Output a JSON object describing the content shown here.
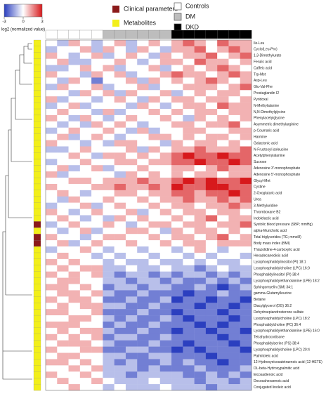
{
  "chart_data": {
    "type": "heatmap",
    "colorbar_label": "log2 (normalized value)",
    "zlim": [
      -3,
      3
    ],
    "zticks": [
      -3,
      0,
      3
    ],
    "colorscale": {
      "low": "#2b3fbf",
      "mid": "#ffffff",
      "high": "#d7191c"
    },
    "row_type_names": [
      "Clinical parameters",
      "Metabolites"
    ],
    "row_type_colors": [
      "#8b1a1a",
      "#f2ef1a"
    ],
    "column_group_names": [
      "Controls",
      "DM",
      "DKD"
    ],
    "column_group_colors": [
      "#ffffff",
      "#bdbdbd",
      "#000000"
    ],
    "column_groups": [
      0,
      0,
      0,
      0,
      0,
      1,
      1,
      1,
      1,
      1,
      1,
      2,
      2,
      2,
      2,
      2,
      2,
      2
    ],
    "rows": [
      "Ile-Leu",
      "Cyclo(Leu-Pro)",
      "1,3-Dimethylurate",
      "Ferulic acid",
      "Caffeic acid",
      "Trp-Met",
      "Asp-Leu",
      "Glu-Val-Phe",
      "Prostaglandin I2",
      "Pyridoxal",
      "N-Methylalanine",
      "N,N-Dimethylglycine",
      "Phenylacetylglycine",
      "Asymmetric dimethylarginine",
      "p-Coumaric acid",
      "Harmine",
      "Galactonic acid",
      "N-Fructosyl isoleucine",
      "Acetylphenylalanine",
      "Sucrose",
      "Adenosine 3'-monophosphate",
      "Adenosine 5'-monophosphate",
      "Glycyl-Met",
      "Cystine",
      "2-Oxoglutaric acid",
      "Urea",
      "3-Methyluridine",
      "Thromboxane B2",
      "Indolelactic acid",
      "Systolic blood pressure (SBP; mmHg)",
      "alpha-Muricholic acid",
      "Total triglycerides (TG; mmol/l)",
      "Body mass index (BMI)",
      "Thiazolidine-4-carboxylic acid",
      "Hexadecanedioic acid",
      "Lysophosphatidylinositol (PI) 18:1",
      "Lysophosphatidylcholine (LPC) 16:0",
      "Phosphatidylinositol (PI) 38:4",
      "Lysophosphatidylethanolamine (LPE) 18:2",
      "Sphingomyelin (SM) 34:1",
      "gamma-Glutamylleucine",
      "Betaine",
      "Diacylglycerol (DG) 36:2",
      "Dehydroepiandrosterone sulfate",
      "Lysophosphatidylcholine (LPC) 18:2",
      "Phosphatidylcholine (PC) 36:4",
      "Lysophosphatidylethanolamine (LPE) 16:0",
      "Tetrahydrocortisone",
      "Phosphatidylserine (PS) 38:4",
      "Lysophosphatidylcholine (LPC) 20:4",
      "Palmitoleic acid",
      "12-Hydroxyeicosatetraenoic acid (12-HETE)",
      "DL-beta-Hydroxypalmitic acid",
      "Eicosadienoic acid",
      "Docosahexaenoic acid",
      "Conjugated linoleic acid"
    ],
    "row_types": [
      1,
      1,
      1,
      1,
      1,
      1,
      1,
      1,
      1,
      1,
      1,
      1,
      1,
      1,
      1,
      1,
      1,
      1,
      1,
      1,
      1,
      1,
      1,
      1,
      1,
      1,
      1,
      1,
      1,
      0,
      1,
      0,
      0,
      1,
      1,
      1,
      1,
      1,
      1,
      1,
      1,
      1,
      1,
      1,
      1,
      1,
      1,
      1,
      1,
      1,
      1,
      1,
      1,
      1,
      1,
      1
    ],
    "z": [
      [
        0,
        -1,
        1,
        0,
        -1,
        0,
        1,
        -1,
        0,
        1,
        0,
        1,
        2,
        1,
        0,
        2,
        1,
        1
      ],
      [
        -1,
        0,
        0,
        1,
        -1,
        1,
        0,
        -1,
        1,
        0,
        -1,
        1,
        1,
        2,
        0,
        1,
        2,
        1
      ],
      [
        1,
        0,
        -1,
        0,
        1,
        -1,
        0,
        1,
        0,
        -1,
        1,
        0,
        1,
        1,
        2,
        0,
        1,
        2
      ],
      [
        0,
        1,
        -1,
        -1,
        0,
        0,
        1,
        0,
        -1,
        0,
        1,
        1,
        0,
        2,
        1,
        1,
        0,
        1
      ],
      [
        -1,
        -1,
        0,
        1,
        0,
        1,
        -1,
        0,
        0,
        1,
        -1,
        0,
        1,
        0,
        1,
        2,
        1,
        0
      ],
      [
        1,
        0,
        0,
        -1,
        1,
        0,
        1,
        -1,
        0,
        0,
        1,
        2,
        1,
        1,
        0,
        1,
        2,
        1
      ],
      [
        0,
        -1,
        1,
        0,
        -2,
        0,
        0,
        1,
        -1,
        1,
        0,
        1,
        0,
        1,
        2,
        1,
        0,
        1
      ],
      [
        -1,
        1,
        0,
        0,
        1,
        -1,
        0,
        0,
        1,
        -1,
        0,
        0,
        1,
        1,
        1,
        0,
        1,
        2
      ],
      [
        0,
        0,
        -1,
        1,
        0,
        1,
        -1,
        1,
        0,
        0,
        1,
        -1,
        0,
        1,
        0,
        1,
        1,
        0
      ],
      [
        1,
        -1,
        0,
        0,
        -1,
        0,
        1,
        0,
        -1,
        1,
        0,
        1,
        1,
        0,
        1,
        1,
        0,
        1
      ],
      [
        -1,
        0,
        1,
        -1,
        0,
        0,
        0,
        -1,
        1,
        0,
        -1,
        0,
        1,
        1,
        0,
        2,
        1,
        1
      ],
      [
        0,
        1,
        0,
        0,
        -1,
        1,
        -1,
        0,
        0,
        1,
        0,
        1,
        0,
        1,
        1,
        0,
        1,
        1
      ],
      [
        1,
        0,
        -1,
        1,
        0,
        -1,
        0,
        1,
        0,
        0,
        1,
        0,
        -1,
        1,
        0,
        1,
        0,
        1
      ],
      [
        0,
        -1,
        0,
        -1,
        1,
        0,
        1,
        0,
        -1,
        0,
        0,
        1,
        1,
        0,
        1,
        1,
        2,
        0
      ],
      [
        -1,
        0,
        1,
        0,
        0,
        1,
        0,
        -1,
        1,
        -1,
        0,
        0,
        1,
        1,
        0,
        0,
        1,
        1
      ],
      [
        0,
        1,
        -1,
        0,
        1,
        0,
        -1,
        0,
        0,
        1,
        1,
        0,
        1,
        0,
        1,
        1,
        0,
        1
      ],
      [
        1,
        0,
        0,
        -1,
        0,
        -1,
        1,
        1,
        0,
        0,
        -1,
        1,
        0,
        1,
        1,
        0,
        1,
        0
      ],
      [
        -1,
        -1,
        0,
        1,
        0,
        0,
        0,
        1,
        -1,
        1,
        0,
        1,
        1,
        2,
        1,
        1,
        1,
        2
      ],
      [
        0,
        0,
        1,
        0,
        -1,
        1,
        1,
        0,
        1,
        0,
        1,
        2,
        3,
        2,
        2,
        3,
        2,
        2
      ],
      [
        -1,
        0,
        0,
        1,
        0,
        0,
        1,
        1,
        0,
        1,
        1,
        2,
        2,
        3,
        2,
        2,
        3,
        2
      ],
      [
        0,
        1,
        -1,
        0,
        1,
        -1,
        0,
        0,
        1,
        0,
        0,
        1,
        1,
        0,
        1,
        2,
        1,
        1
      ],
      [
        1,
        -1,
        0,
        0,
        0,
        0,
        -1,
        1,
        0,
        1,
        0,
        1,
        0,
        1,
        1,
        0,
        1,
        1
      ],
      [
        0,
        0,
        1,
        1,
        0,
        1,
        1,
        1,
        2,
        1,
        1,
        2,
        3,
        2,
        3,
        2,
        2,
        3
      ],
      [
        1,
        0,
        0,
        0,
        1,
        1,
        2,
        1,
        1,
        2,
        1,
        3,
        2,
        2,
        3,
        3,
        2,
        2
      ],
      [
        0,
        1,
        0,
        -1,
        0,
        0,
        1,
        1,
        0,
        1,
        1,
        2,
        2,
        1,
        2,
        2,
        3,
        2
      ],
      [
        0,
        -1,
        1,
        0,
        0,
        1,
        0,
        0,
        1,
        0,
        1,
        1,
        2,
        1,
        1,
        2,
        1,
        2
      ],
      [
        -1,
        0,
        0,
        1,
        -1,
        0,
        1,
        0,
        0,
        1,
        0,
        1,
        1,
        0,
        1,
        1,
        2,
        1
      ],
      [
        1,
        0,
        -1,
        0,
        1,
        0,
        0,
        1,
        -1,
        0,
        1,
        0,
        1,
        1,
        0,
        1,
        1,
        0
      ],
      [
        0,
        1,
        0,
        -1,
        0,
        -1,
        1,
        0,
        1,
        0,
        0,
        1,
        0,
        1,
        2,
        0,
        1,
        1
      ],
      [
        -1,
        0,
        1,
        0,
        0,
        1,
        0,
        -1,
        0,
        1,
        1,
        0,
        1,
        1,
        0,
        1,
        1,
        2
      ],
      [
        0,
        -1,
        0,
        1,
        -1,
        0,
        0,
        1,
        1,
        0,
        -1,
        1,
        0,
        1,
        1,
        0,
        1,
        0
      ],
      [
        1,
        0,
        0,
        -1,
        0,
        1,
        1,
        0,
        0,
        1,
        0,
        1,
        1,
        0,
        1,
        2,
        0,
        1
      ],
      [
        0,
        1,
        -1,
        0,
        1,
        0,
        0,
        1,
        0,
        0,
        1,
        0,
        1,
        1,
        0,
        1,
        1,
        1
      ],
      [
        -1,
        0,
        0,
        1,
        0,
        -1,
        0,
        0,
        -1,
        0,
        0,
        -1,
        0,
        1,
        0,
        -1,
        0,
        0
      ],
      [
        0,
        1,
        0,
        0,
        -1,
        0,
        -1,
        0,
        0,
        -1,
        0,
        0,
        -1,
        0,
        -1,
        0,
        0,
        -1
      ],
      [
        1,
        0,
        1,
        0,
        0,
        -1,
        0,
        -1,
        -1,
        0,
        -1,
        -1,
        0,
        -1,
        0,
        -1,
        -1,
        0
      ],
      [
        0,
        1,
        0,
        1,
        1,
        -1,
        -1,
        0,
        -1,
        -1,
        0,
        -1,
        -1,
        -2,
        -1,
        0,
        -1,
        -1
      ],
      [
        1,
        0,
        1,
        0,
        1,
        -1,
        -2,
        -1,
        -1,
        -2,
        -1,
        -2,
        -1,
        -1,
        -2,
        -1,
        -2,
        -1
      ],
      [
        0,
        1,
        1,
        0,
        0,
        -1,
        -1,
        -2,
        -1,
        -1,
        -2,
        -1,
        -2,
        -2,
        -1,
        -2,
        -1,
        -2
      ],
      [
        1,
        1,
        0,
        1,
        0,
        -2,
        -1,
        -1,
        -2,
        -1,
        -1,
        -2,
        -2,
        -1,
        -2,
        -3,
        -2,
        -1
      ],
      [
        0,
        1,
        1,
        0,
        1,
        -1,
        -2,
        -2,
        -1,
        -2,
        -2,
        -2,
        -3,
        -2,
        -2,
        -1,
        -2,
        -2
      ],
      [
        1,
        0,
        1,
        1,
        0,
        -2,
        -2,
        -1,
        -2,
        -2,
        -1,
        -3,
        -2,
        -2,
        -3,
        -2,
        -2,
        -3
      ],
      [
        0,
        1,
        0,
        1,
        1,
        -1,
        -1,
        -2,
        -2,
        -1,
        -2,
        -2,
        -2,
        -3,
        -2,
        -2,
        -3,
        -2
      ],
      [
        1,
        1,
        0,
        0,
        1,
        -2,
        -2,
        -2,
        -1,
        -2,
        -2,
        -3,
        -2,
        -2,
        -2,
        -3,
        -2,
        -2
      ],
      [
        0,
        0,
        1,
        1,
        0,
        -1,
        -2,
        -1,
        -2,
        -2,
        -1,
        -2,
        -3,
        -2,
        -2,
        -2,
        -3,
        -2
      ],
      [
        1,
        1,
        1,
        0,
        0,
        -2,
        -1,
        -2,
        -2,
        -1,
        -2,
        -2,
        -2,
        -3,
        -2,
        -3,
        -2,
        -2
      ],
      [
        0,
        1,
        0,
        1,
        1,
        -1,
        -2,
        -2,
        -1,
        -2,
        -2,
        -3,
        -2,
        -2,
        -3,
        -2,
        -2,
        -3
      ],
      [
        1,
        0,
        1,
        0,
        1,
        -2,
        -1,
        -1,
        -2,
        -2,
        -1,
        -2,
        -2,
        -2,
        -2,
        -3,
        -2,
        -2
      ],
      [
        0,
        1,
        1,
        1,
        0,
        -1,
        -2,
        -2,
        -2,
        -1,
        -2,
        -2,
        -3,
        -2,
        -2,
        -2,
        -3,
        -2
      ],
      [
        1,
        0,
        0,
        1,
        1,
        -2,
        -2,
        -1,
        -1,
        -2,
        -2,
        -3,
        -2,
        -3,
        -2,
        -2,
        -2,
        -3
      ],
      [
        0,
        1,
        1,
        0,
        0,
        -1,
        -1,
        -2,
        -2,
        -1,
        -1,
        -2,
        -2,
        -2,
        -3,
        -2,
        -2,
        -2
      ],
      [
        1,
        1,
        0,
        1,
        0,
        -1,
        -2,
        -1,
        -2,
        -2,
        -1,
        -2,
        -1,
        -2,
        -2,
        -3,
        -2,
        -2
      ],
      [
        0,
        0,
        1,
        0,
        1,
        -1,
        -1,
        -1,
        -2,
        -1,
        -2,
        -2,
        -2,
        -1,
        -2,
        -2,
        -2,
        -1
      ],
      [
        1,
        0,
        0,
        1,
        0,
        -1,
        -1,
        -2,
        -1,
        -1,
        -1,
        -1,
        -2,
        -2,
        -1,
        -2,
        -1,
        -2
      ],
      [
        0,
        1,
        0,
        0,
        1,
        0,
        -1,
        -1,
        -1,
        0,
        -1,
        -1,
        -1,
        -2,
        -1,
        -1,
        -2,
        -1
      ],
      [
        0,
        0,
        1,
        0,
        0,
        -1,
        0,
        -1,
        -1,
        -1,
        0,
        -1,
        -1,
        -1,
        -2,
        -1,
        -1,
        -1
      ]
    ]
  }
}
